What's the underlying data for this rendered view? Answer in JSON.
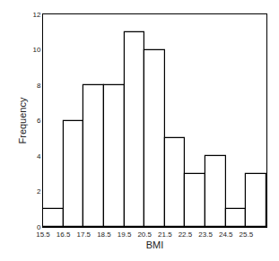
{
  "chart_data": {
    "type": "histogram",
    "xlabel": "BMI",
    "ylabel": "Frequency",
    "bins": [
      15.5,
      16.5,
      17.5,
      18.5,
      19.5,
      20.5,
      21.5,
      22.5,
      23.5,
      24.5,
      25.5,
      26.5
    ],
    "values": [
      1,
      6,
      8,
      8,
      11,
      10,
      5,
      3,
      4,
      1,
      3
    ],
    "color": "#ffffff",
    "xlim": [
      15.5,
      26.5
    ],
    "xticks": [
      15.5,
      16.5,
      17.5,
      18.5,
      19.5,
      20.5,
      21.5,
      22.5,
      23.5,
      24.5,
      25.5
    ],
    "ylim": [
      0,
      12
    ],
    "yticks": [
      0,
      2,
      4,
      6,
      8,
      10,
      12
    ],
    "grid": false
  }
}
